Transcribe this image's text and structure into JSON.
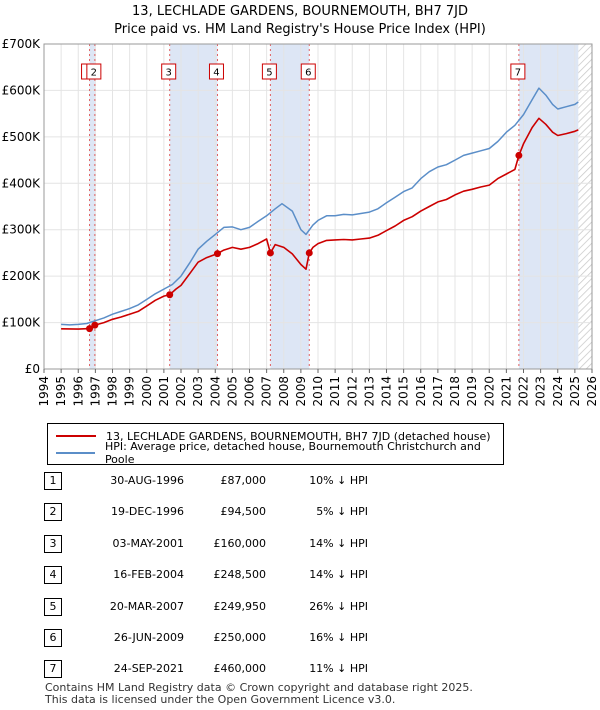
{
  "title_line1": "13, LECHLADE GARDENS, BOURNEMOUTH, BH7 7JD",
  "title_line2": "Price paid vs. HM Land Registry's House Price Index (HPI)",
  "chart_data": {
    "type": "line",
    "xlim": [
      1994,
      2026
    ],
    "ylim": [
      0,
      700000
    ],
    "y_ticks": [
      {
        "value": 0,
        "label": "£0"
      },
      {
        "value": 100000,
        "label": "£100K"
      },
      {
        "value": 200000,
        "label": "£200K"
      },
      {
        "value": 300000,
        "label": "£300K"
      },
      {
        "value": 400000,
        "label": "£400K"
      },
      {
        "value": 500000,
        "label": "£500K"
      },
      {
        "value": 600000,
        "label": "£600K"
      },
      {
        "value": 700000,
        "label": "£700K"
      }
    ],
    "x_ticks": [
      "1994",
      "1995",
      "1996",
      "1997",
      "1998",
      "1999",
      "2000",
      "2001",
      "2002",
      "2003",
      "2004",
      "2005",
      "2006",
      "2007",
      "2008",
      "2009",
      "2010",
      "2011",
      "2012",
      "2013",
      "2014",
      "2015",
      "2016",
      "2017",
      "2018",
      "2019",
      "2020",
      "2021",
      "2022",
      "2023",
      "2024",
      "2025",
      "2026"
    ],
    "colors": {
      "property": "#cc0000",
      "hpi": "#5b8ec8",
      "shade": "#dde6f5",
      "grid": "#e4e4e4",
      "vline": "#e06060"
    },
    "shaded_ranges": [
      [
        1996.66,
        1996.97
      ],
      [
        2001.34,
        2004.13
      ],
      [
        2007.22,
        2009.49
      ],
      [
        2021.73,
        2025.2
      ]
    ],
    "hatch_from": 2025.2,
    "series": [
      {
        "name": "hpi",
        "points": [
          [
            1995,
            96000
          ],
          [
            1995.5,
            95000
          ],
          [
            1996,
            96000
          ],
          [
            1996.5,
            98000
          ],
          [
            1997,
            104000
          ],
          [
            1997.5,
            110000
          ],
          [
            1998,
            118000
          ],
          [
            1998.5,
            124000
          ],
          [
            1999,
            130000
          ],
          [
            1999.5,
            138000
          ],
          [
            2000,
            150000
          ],
          [
            2000.5,
            162000
          ],
          [
            2001,
            172000
          ],
          [
            2001.5,
            182000
          ],
          [
            2002,
            200000
          ],
          [
            2002.5,
            228000
          ],
          [
            2003,
            258000
          ],
          [
            2003.5,
            275000
          ],
          [
            2004,
            290000
          ],
          [
            2004.5,
            305000
          ],
          [
            2005,
            306000
          ],
          [
            2005.5,
            300000
          ],
          [
            2006,
            305000
          ],
          [
            2006.5,
            318000
          ],
          [
            2007,
            330000
          ],
          [
            2007.5,
            345000
          ],
          [
            2007.9,
            356000
          ],
          [
            2008.5,
            340000
          ],
          [
            2009,
            300000
          ],
          [
            2009.3,
            290000
          ],
          [
            2009.7,
            310000
          ],
          [
            2010,
            320000
          ],
          [
            2010.5,
            330000
          ],
          [
            2011,
            330000
          ],
          [
            2011.5,
            333000
          ],
          [
            2012,
            332000
          ],
          [
            2012.5,
            335000
          ],
          [
            2013,
            338000
          ],
          [
            2013.5,
            345000
          ],
          [
            2014,
            358000
          ],
          [
            2014.5,
            370000
          ],
          [
            2015,
            382000
          ],
          [
            2015.5,
            390000
          ],
          [
            2016,
            410000
          ],
          [
            2016.5,
            425000
          ],
          [
            2017,
            435000
          ],
          [
            2017.5,
            440000
          ],
          [
            2018,
            450000
          ],
          [
            2018.5,
            460000
          ],
          [
            2019,
            465000
          ],
          [
            2019.5,
            470000
          ],
          [
            2020,
            475000
          ],
          [
            2020.5,
            490000
          ],
          [
            2021,
            510000
          ],
          [
            2021.5,
            525000
          ],
          [
            2022,
            548000
          ],
          [
            2022.5,
            580000
          ],
          [
            2022.9,
            605000
          ],
          [
            2023.3,
            590000
          ],
          [
            2023.7,
            570000
          ],
          [
            2024,
            560000
          ],
          [
            2024.5,
            565000
          ],
          [
            2025,
            570000
          ],
          [
            2025.2,
            575000
          ]
        ]
      },
      {
        "name": "property",
        "points": [
          [
            1995,
            86500
          ],
          [
            1996,
            86000
          ],
          [
            1996.66,
            87000
          ],
          [
            1996.97,
            94500
          ],
          [
            1997.5,
            100000
          ],
          [
            1998,
            107000
          ],
          [
            1998.5,
            112000
          ],
          [
            1999,
            118000
          ],
          [
            1999.5,
            124000
          ],
          [
            2000,
            136000
          ],
          [
            2000.5,
            148000
          ],
          [
            2001,
            157000
          ],
          [
            2001.34,
            160000
          ],
          [
            2001.7,
            172000
          ],
          [
            2002,
            180000
          ],
          [
            2002.5,
            205000
          ],
          [
            2003,
            230000
          ],
          [
            2003.5,
            240000
          ],
          [
            2004.13,
            248500
          ],
          [
            2004.5,
            256000
          ],
          [
            2005,
            262000
          ],
          [
            2005.5,
            258000
          ],
          [
            2006,
            262000
          ],
          [
            2006.5,
            270000
          ],
          [
            2007,
            280000
          ],
          [
            2007.22,
            249950
          ],
          [
            2007.5,
            268000
          ],
          [
            2008,
            262000
          ],
          [
            2008.5,
            248000
          ],
          [
            2009,
            225000
          ],
          [
            2009.3,
            215000
          ],
          [
            2009.49,
            250000
          ],
          [
            2009.7,
            262000
          ],
          [
            2010,
            270000
          ],
          [
            2010.5,
            277000
          ],
          [
            2011,
            278000
          ],
          [
            2011.5,
            279000
          ],
          [
            2012,
            278000
          ],
          [
            2012.5,
            280000
          ],
          [
            2013,
            282000
          ],
          [
            2013.5,
            288000
          ],
          [
            2014,
            298000
          ],
          [
            2014.5,
            308000
          ],
          [
            2015,
            320000
          ],
          [
            2015.5,
            328000
          ],
          [
            2016,
            340000
          ],
          [
            2016.5,
            350000
          ],
          [
            2017,
            360000
          ],
          [
            2017.5,
            365000
          ],
          [
            2018,
            375000
          ],
          [
            2018.5,
            383000
          ],
          [
            2019,
            387000
          ],
          [
            2019.5,
            392000
          ],
          [
            2020,
            396000
          ],
          [
            2020.5,
            410000
          ],
          [
            2021,
            420000
          ],
          [
            2021.5,
            430000
          ],
          [
            2021.73,
            460000
          ],
          [
            2022,
            485000
          ],
          [
            2022.5,
            520000
          ],
          [
            2022.9,
            540000
          ],
          [
            2023.3,
            527000
          ],
          [
            2023.7,
            510000
          ],
          [
            2024,
            503000
          ],
          [
            2024.5,
            507000
          ],
          [
            2025,
            512000
          ],
          [
            2025.2,
            515000
          ]
        ]
      }
    ],
    "transactions": [
      {
        "id": "1",
        "x": 1996.66,
        "price": 87000
      },
      {
        "id": "2",
        "x": 1996.97,
        "price": 94500
      },
      {
        "id": "3",
        "x": 2001.34,
        "price": 160000
      },
      {
        "id": "4",
        "x": 2004.13,
        "price": 248500
      },
      {
        "id": "5",
        "x": 2007.22,
        "price": 249950
      },
      {
        "id": "6",
        "x": 2009.49,
        "price": 250000
      },
      {
        "id": "7",
        "x": 2021.73,
        "price": 460000
      }
    ]
  },
  "legend": {
    "property_label": "13, LECHLADE GARDENS, BOURNEMOUTH, BH7 7JD (detached house)",
    "hpi_label": "HPI: Average price, detached house, Bournemouth Christchurch and Poole"
  },
  "table": [
    {
      "num": "1",
      "date": "30-AUG-1996",
      "price": "£87,000",
      "hpi": "10% ↓ HPI"
    },
    {
      "num": "2",
      "date": "19-DEC-1996",
      "price": "£94,500",
      "hpi": "5% ↓ HPI"
    },
    {
      "num": "3",
      "date": "03-MAY-2001",
      "price": "£160,000",
      "hpi": "14% ↓ HPI"
    },
    {
      "num": "4",
      "date": "16-FEB-2004",
      "price": "£248,500",
      "hpi": "14% ↓ HPI"
    },
    {
      "num": "5",
      "date": "20-MAR-2007",
      "price": "£249,950",
      "hpi": "26% ↓ HPI"
    },
    {
      "num": "6",
      "date": "26-JUN-2009",
      "price": "£250,000",
      "hpi": "16% ↓ HPI"
    },
    {
      "num": "7",
      "date": "24-SEP-2021",
      "price": "£460,000",
      "hpi": "11% ↓ HPI"
    }
  ],
  "footer_line1": "Contains HM Land Registry data © Crown copyright and database right 2025.",
  "footer_line2": "This data is licensed under the Open Government Licence v3.0."
}
